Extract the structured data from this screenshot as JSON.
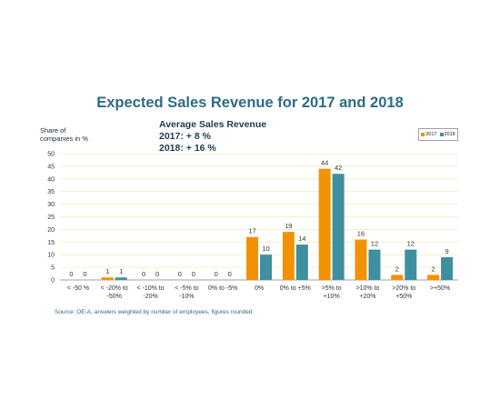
{
  "chart_data": {
    "type": "bar",
    "title": "Expected Sales Revenue for 2017 and 2018",
    "ylabel_lines": [
      "Share of",
      "companies in %"
    ],
    "annotation_lines": [
      "Average Sales Revenue",
      "2017: + 8 %",
      "2018: + 16 %"
    ],
    "categories": [
      [
        "< -50 %"
      ],
      [
        "< -20% to",
        "-50%"
      ],
      [
        "< -10% to",
        "-20%"
      ],
      [
        "< -5% to",
        "-10%"
      ],
      [
        "0% to -5%"
      ],
      [
        "0%"
      ],
      [
        "0% to +5%"
      ],
      [
        ">5% to",
        "+10%"
      ],
      [
        ">10% to",
        "+20%"
      ],
      [
        ">20% to",
        "+50%"
      ],
      [
        ">+50%"
      ]
    ],
    "series": [
      {
        "name": "2017",
        "color": "#f39200",
        "values": [
          0,
          1,
          0,
          0,
          0,
          17,
          19,
          44,
          16,
          2,
          2
        ]
      },
      {
        "name": "2018",
        "color": "#3e8fa0",
        "values": [
          0,
          1,
          0,
          0,
          0,
          10,
          14,
          42,
          12,
          12,
          9
        ]
      }
    ],
    "yticks": [
      0,
      5,
      10,
      15,
      20,
      25,
      30,
      35,
      40,
      45,
      50
    ],
    "ylim": [
      0,
      50
    ],
    "grid": true,
    "legend_position": "top-right",
    "source": "Source: OE-A, answers weighted by number of employees, figures rounded"
  }
}
